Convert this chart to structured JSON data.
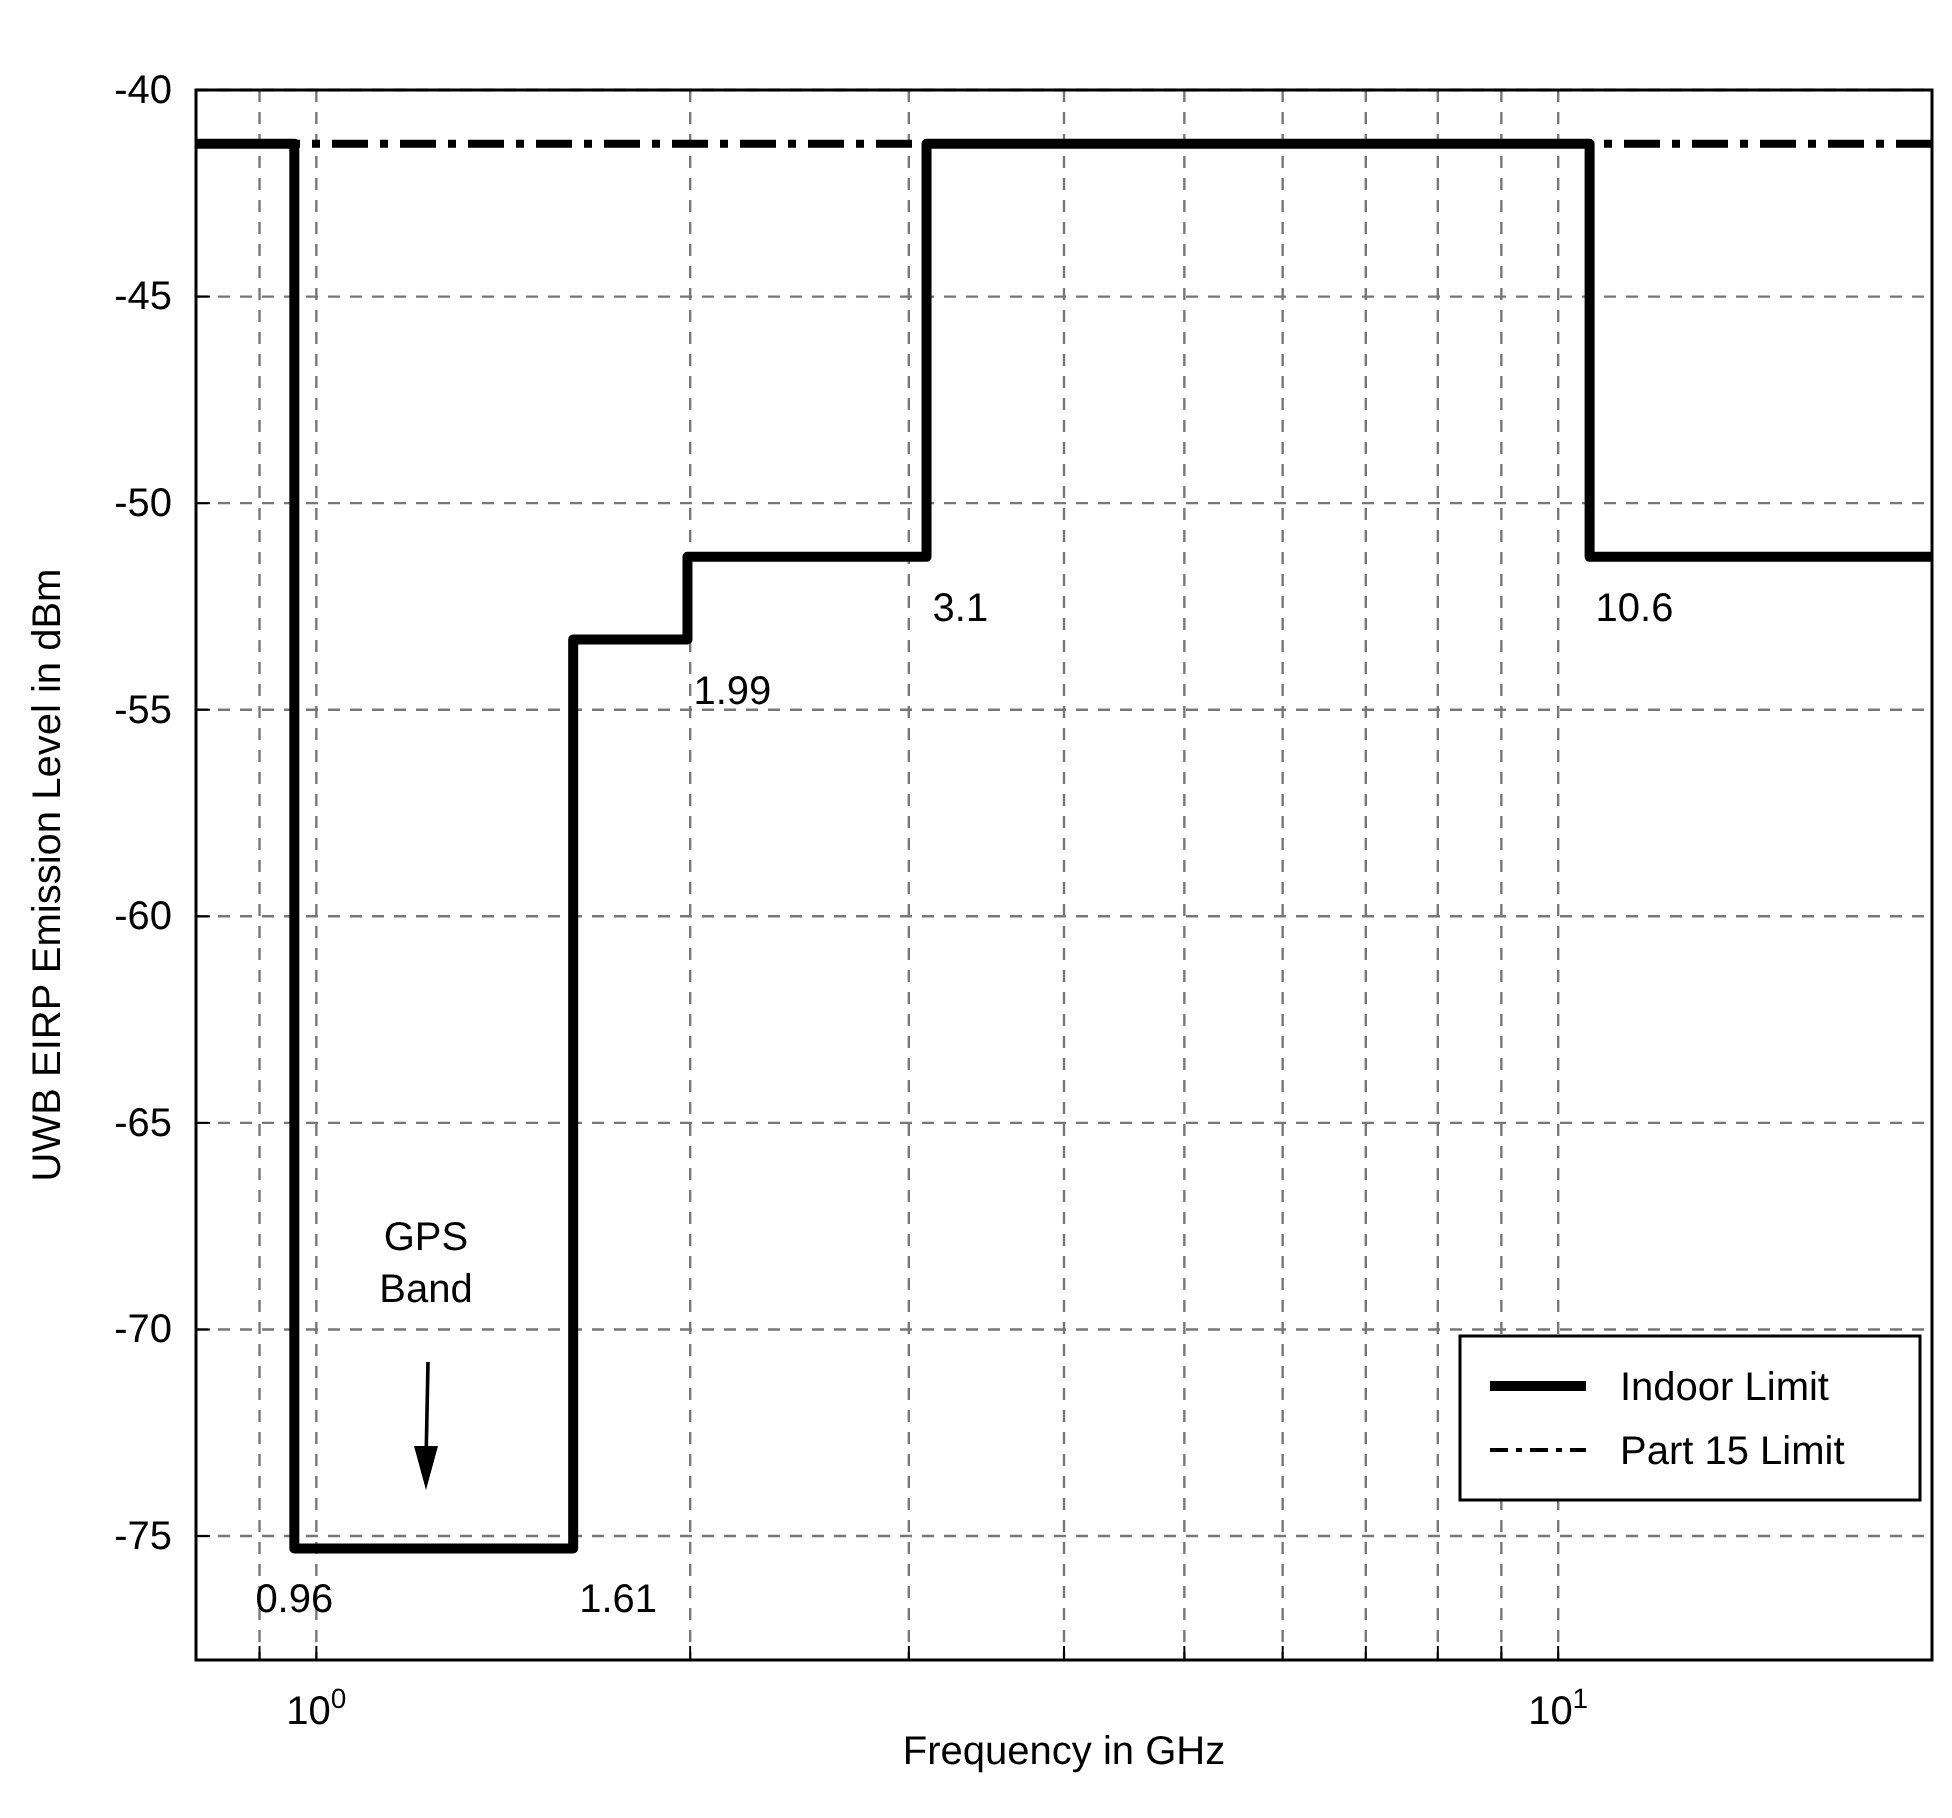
{
  "chart_data": {
    "type": "step",
    "xlabel": "Frequency in GHz",
    "ylabel": "UWB EIRP Emission Level in dBm",
    "log": "x",
    "grid": true,
    "legend": "bottom right",
    "xlim": [
      0.8,
      20
    ],
    "ylim": [
      -78,
      -40
    ],
    "xticks": [
      {
        "value": 0.9,
        "label": null
      },
      {
        "value": 1,
        "label": "10$^{0}$"
      },
      {
        "value": 2,
        "label": null
      },
      {
        "value": 3,
        "label": null
      },
      {
        "value": 4,
        "label": null
      },
      {
        "value": 5,
        "label": null
      },
      {
        "value": 6,
        "label": null
      },
      {
        "value": 7,
        "label": null
      },
      {
        "value": 8,
        "label": null
      },
      {
        "value": 9,
        "label": null
      },
      {
        "value": 10,
        "label": "10$^{1}$"
      }
    ],
    "yticks": [
      -75,
      -70,
      -65,
      -60,
      -55,
      -50,
      -45,
      -40
    ],
    "series": [
      {
        "name": "Indoor Limit",
        "color": "#000000",
        "line_style": "solid",
        "x": [
          0.8,
          0.96,
          1.61,
          1.99,
          3.1,
          10.6,
          20
        ],
        "values": [
          -41.3,
          -75.3,
          -53.3,
          -51.3,
          -41.3,
          -51.3,
          -51.3
        ]
      },
      {
        "name": "Part 15 Limit",
        "color": "#000000",
        "line_style": "dashdot",
        "x": [
          0.8,
          20
        ],
        "values": [
          -41.3,
          -41.3
        ]
      }
    ],
    "annotations": [
      {
        "text": "0.96",
        "x": 0.96,
        "y": -75.3
      },
      {
        "text": "1.61",
        "x": 1.61,
        "y": -75.3
      },
      {
        "text": "1.99",
        "x": 1.99,
        "y": -53.3
      },
      {
        "text": "3.1",
        "x": 3.1,
        "y": -51.3
      },
      {
        "text": "10.6",
        "x": 10.6,
        "y": -51.3
      },
      "GPS Band"
    ]
  }
}
